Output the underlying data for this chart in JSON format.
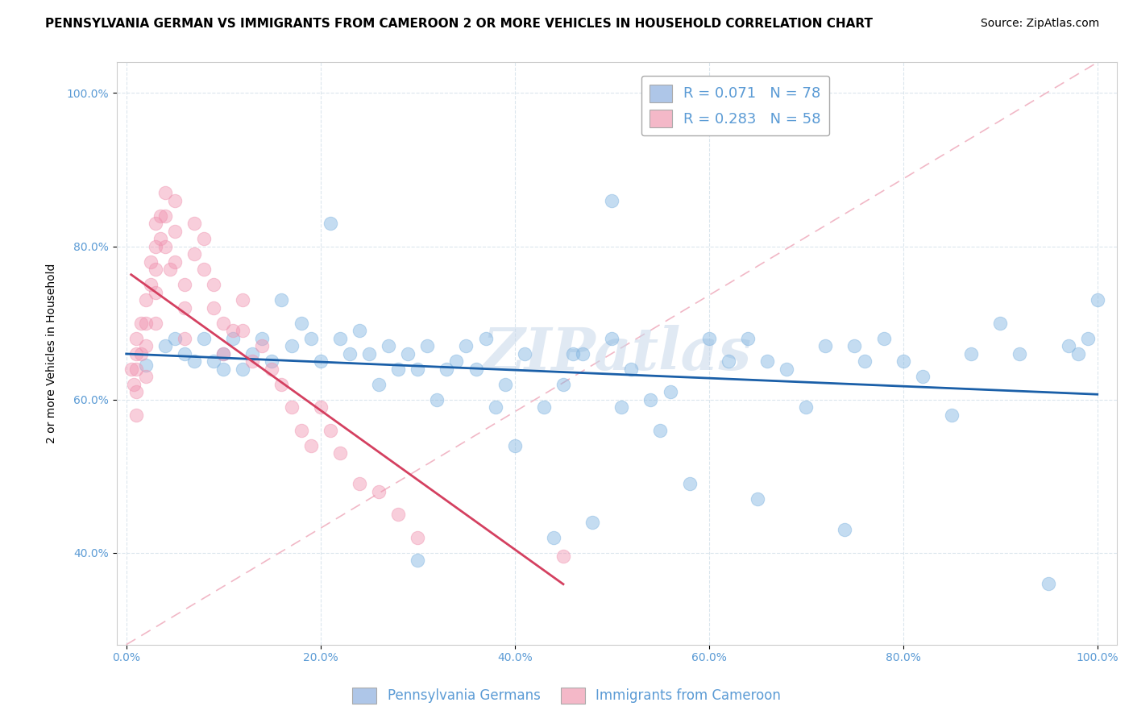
{
  "title": "PENNSYLVANIA GERMAN VS IMMIGRANTS FROM CAMEROON 2 OR MORE VEHICLES IN HOUSEHOLD CORRELATION CHART",
  "source": "Source: ZipAtlas.com",
  "ylabel": "2 or more Vehicles in Household",
  "legend1_label": "R = 0.071   N = 78",
  "legend2_label": "R = 0.283   N = 58",
  "legend1_color": "#aec6e8",
  "legend2_color": "#f4b8c8",
  "blue_color": "#7eb3e0",
  "pink_color": "#f093b0",
  "blue_line_color": "#1a5fa8",
  "pink_line_color": "#d44060",
  "diag_line_color": "#f0b0c0",
  "watermark": "ZIPatlas",
  "watermark_color": "#c8d8ea",
  "tick_color": "#5b9bd5",
  "title_fontsize": 11,
  "label_fontsize": 10,
  "tick_fontsize": 10,
  "legend_fontsize": 13,
  "source_fontsize": 10,
  "blue_x": [
    0.02,
    0.04,
    0.05,
    0.06,
    0.07,
    0.08,
    0.09,
    0.1,
    0.1,
    0.11,
    0.12,
    0.13,
    0.14,
    0.15,
    0.16,
    0.17,
    0.18,
    0.19,
    0.2,
    0.22,
    0.23,
    0.24,
    0.25,
    0.26,
    0.27,
    0.28,
    0.29,
    0.3,
    0.31,
    0.32,
    0.33,
    0.34,
    0.35,
    0.36,
    0.37,
    0.38,
    0.39,
    0.4,
    0.41,
    0.43,
    0.45,
    0.46,
    0.47,
    0.5,
    0.51,
    0.52,
    0.54,
    0.56,
    0.58,
    0.6,
    0.62,
    0.64,
    0.65,
    0.66,
    0.68,
    0.7,
    0.72,
    0.74,
    0.76,
    0.78,
    0.8,
    0.82,
    0.85,
    0.87,
    0.9,
    0.92,
    0.95,
    0.97,
    0.98,
    0.99,
    1.0,
    0.5,
    0.21,
    0.75,
    0.55,
    0.3,
    0.48,
    0.44
  ],
  "blue_y": [
    0.645,
    0.67,
    0.68,
    0.66,
    0.65,
    0.68,
    0.65,
    0.64,
    0.66,
    0.68,
    0.64,
    0.66,
    0.68,
    0.65,
    0.73,
    0.67,
    0.7,
    0.68,
    0.65,
    0.68,
    0.66,
    0.69,
    0.66,
    0.62,
    0.67,
    0.64,
    0.66,
    0.64,
    0.67,
    0.6,
    0.64,
    0.65,
    0.67,
    0.64,
    0.68,
    0.59,
    0.62,
    0.54,
    0.66,
    0.59,
    0.62,
    0.66,
    0.66,
    0.68,
    0.59,
    0.64,
    0.6,
    0.61,
    0.49,
    0.68,
    0.65,
    0.68,
    0.47,
    0.65,
    0.64,
    0.59,
    0.67,
    0.43,
    0.65,
    0.68,
    0.65,
    0.63,
    0.58,
    0.66,
    0.7,
    0.66,
    0.36,
    0.67,
    0.66,
    0.68,
    0.73,
    0.86,
    0.83,
    0.67,
    0.56,
    0.39,
    0.44,
    0.42
  ],
  "pink_x": [
    0.005,
    0.008,
    0.01,
    0.01,
    0.01,
    0.01,
    0.01,
    0.015,
    0.015,
    0.02,
    0.02,
    0.02,
    0.02,
    0.025,
    0.025,
    0.03,
    0.03,
    0.03,
    0.03,
    0.03,
    0.035,
    0.035,
    0.04,
    0.04,
    0.04,
    0.045,
    0.05,
    0.05,
    0.05,
    0.06,
    0.06,
    0.06,
    0.07,
    0.07,
    0.08,
    0.08,
    0.09,
    0.09,
    0.1,
    0.1,
    0.11,
    0.12,
    0.12,
    0.13,
    0.14,
    0.15,
    0.16,
    0.17,
    0.18,
    0.19,
    0.2,
    0.21,
    0.22,
    0.24,
    0.26,
    0.28,
    0.3,
    0.45
  ],
  "pink_y": [
    0.64,
    0.62,
    0.68,
    0.66,
    0.64,
    0.61,
    0.58,
    0.7,
    0.66,
    0.73,
    0.7,
    0.67,
    0.63,
    0.78,
    0.75,
    0.83,
    0.8,
    0.77,
    0.74,
    0.7,
    0.84,
    0.81,
    0.87,
    0.84,
    0.8,
    0.77,
    0.86,
    0.82,
    0.78,
    0.75,
    0.72,
    0.68,
    0.83,
    0.79,
    0.81,
    0.77,
    0.75,
    0.72,
    0.7,
    0.66,
    0.69,
    0.73,
    0.69,
    0.65,
    0.67,
    0.64,
    0.62,
    0.59,
    0.56,
    0.54,
    0.59,
    0.56,
    0.53,
    0.49,
    0.48,
    0.45,
    0.42,
    0.395
  ]
}
